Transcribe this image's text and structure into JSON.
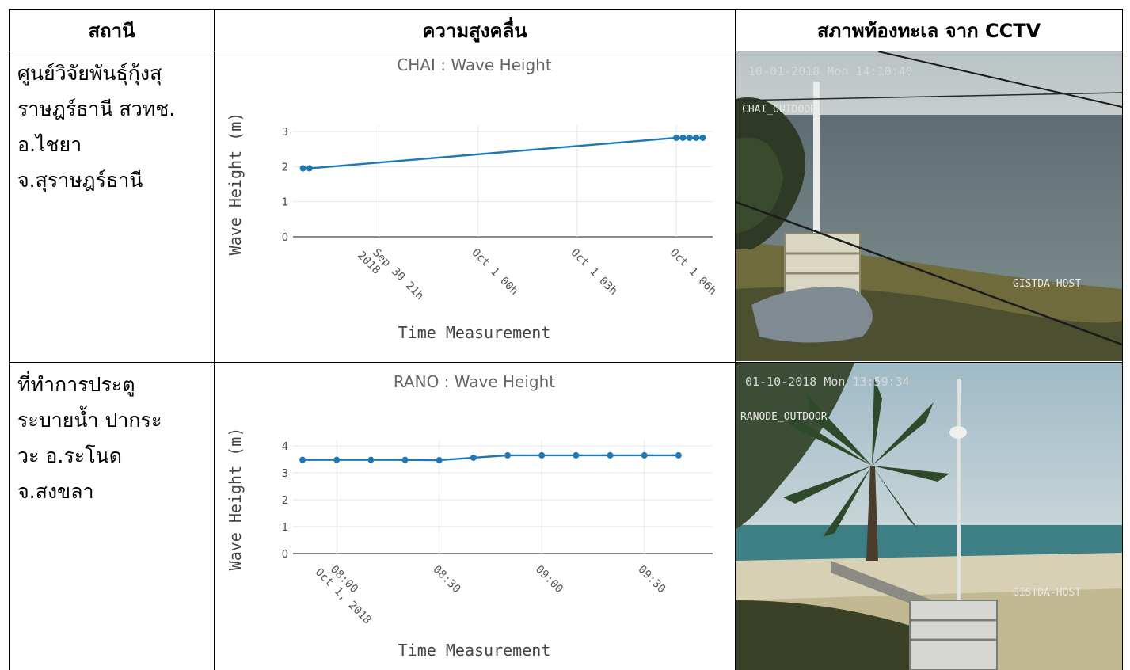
{
  "table": {
    "headers": [
      "สถานี",
      "ความสูงคลื่น",
      "สภาพท้องทะเล จาก CCTV"
    ],
    "rows": [
      {
        "station_lines": [
          "ศูนย์วิจัยพันธุ์กุ้งสุ",
          "ราษฎร์ธานี สวทช.",
          "อ.ไชยา",
          "จ.สุราษฎร์ธานี"
        ]
      },
      {
        "station_lines": [
          "ที่ทำการประตู",
          "ระบายน้ำ ปากระ",
          "วะ อ.ระโนด",
          "จ.สงขลา"
        ]
      }
    ]
  },
  "cctv": [
    {
      "timestamp": "10-01-2018 Mon 14:10:40",
      "camera_label": "CHAI_OUTDOOR",
      "watermark": "GISTDA-HOST"
    },
    {
      "timestamp": "01-10-2018 Mon 13:59:34",
      "camera_label": "RANODE_OUTDOOR",
      "watermark": "GISTDA-HOST"
    }
  ],
  "chart_data": [
    {
      "type": "line",
      "title": "CHAI : Wave Height",
      "xlabel": "Time Measurement",
      "ylabel": "Wave Height (m)",
      "ylim": [
        0,
        3
      ],
      "yticks": [
        0,
        1,
        2,
        3
      ],
      "xlim": [
        -2.6,
        10.1
      ],
      "xticks": [
        {
          "x": 0,
          "label": [
            "Sep 30 21h",
            "2018"
          ]
        },
        {
          "x": 3,
          "label": [
            "Oct 1 00h"
          ]
        },
        {
          "x": 6,
          "label": [
            "Oct 1 03h"
          ]
        },
        {
          "x": 9,
          "label": [
            "Oct 1 06h"
          ]
        }
      ],
      "series": [
        {
          "color": "#1f77b4",
          "x": [
            -2.3,
            -2.1,
            9.0,
            9.2,
            9.4,
            9.6,
            9.8
          ],
          "y": [
            1.95,
            1.95,
            2.82,
            2.82,
            2.82,
            2.82,
            2.82
          ]
        }
      ],
      "grid": true
    },
    {
      "type": "line",
      "title": "RANO : Wave Height",
      "xlabel": "Time Measurement",
      "ylabel": "Wave Height (m)",
      "ylim": [
        0,
        4
      ],
      "yticks": [
        0,
        1,
        2,
        3,
        4
      ],
      "xlim": [
        -1.28,
        11.0
      ],
      "xticks": [
        {
          "x": 0,
          "label": [
            "08:00",
            "Oct 1, 2018"
          ]
        },
        {
          "x": 3,
          "label": [
            "08:30"
          ]
        },
        {
          "x": 6,
          "label": [
            "09:00"
          ]
        },
        {
          "x": 9,
          "label": [
            "09:30"
          ]
        }
      ],
      "series": [
        {
          "color": "#1f77b4",
          "x": [
            -2,
            -1,
            0,
            1,
            2,
            3,
            4,
            5,
            6,
            7,
            8,
            9,
            10
          ],
          "y": [
            3.48,
            3.48,
            3.48,
            3.48,
            3.48,
            3.47,
            3.56,
            3.65,
            3.65,
            3.65,
            3.65,
            3.65,
            3.65
          ]
        }
      ],
      "grid": true
    }
  ]
}
